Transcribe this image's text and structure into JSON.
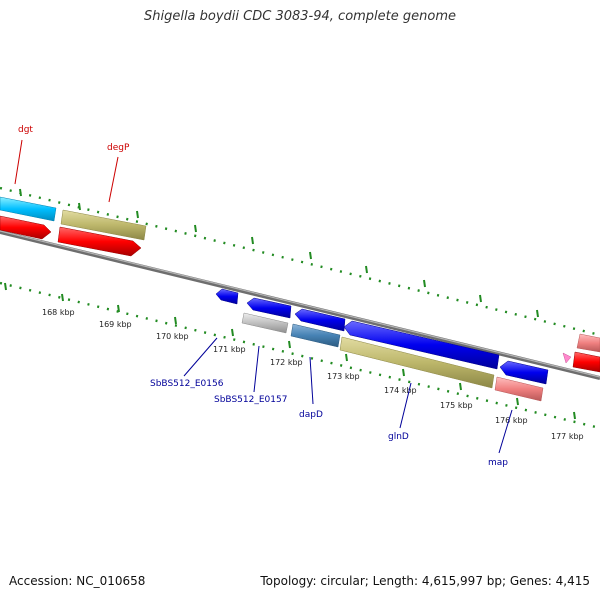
{
  "title": "Shigella boydii CDC 3083-94, complete genome",
  "accession": "Accession: NC_010658",
  "summary": "Topology: circular; Length: 4,615,997 bp; Genes: 4,415",
  "scale_ticks": [
    "168 kbp",
    "169 kbp",
    "170 kbp",
    "171 kbp",
    "172 kbp",
    "173 kbp",
    "174 kbp",
    "175 kbp",
    "176 kbp",
    "177 kbp"
  ],
  "gene_labels": {
    "dgt": "dgt",
    "degP": "degP",
    "e0156": "SbBS512_E0156",
    "e0157": "SbBS512_E0157",
    "dapD": "dapD",
    "glnD": "glnD",
    "map": "map"
  },
  "colors": {
    "forward_strand": "#ff0000",
    "reverse_strand": "#0000ee",
    "backbone": "#888888",
    "tick": "#228b22",
    "label_top": "#cc0000",
    "label_bottom": "#000099"
  }
}
